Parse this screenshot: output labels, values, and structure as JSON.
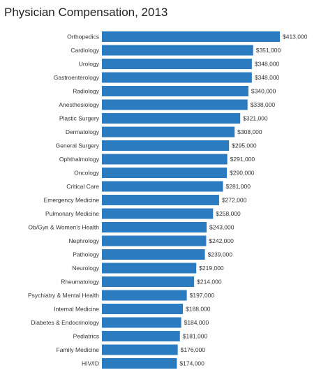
{
  "chart_data": {
    "type": "bar",
    "orientation": "horizontal",
    "title": "Physician Compensation, 2013",
    "xlabel": "",
    "ylabel": "",
    "grid": false,
    "legend": "none",
    "bar_color": "#2a7bc0",
    "xlim": [
      0,
      413000
    ],
    "categories": [
      "Orthopedics",
      "Cardiology",
      "Urology",
      "Gastroenterology",
      "Radiology",
      "Anesthesiology",
      "Plastic Surgery",
      "Dermatology",
      "General Surgery",
      "Ophthalmology",
      "Oncology",
      "Critical Care",
      "Emergency Medicine",
      "Pulmonary Medicine",
      "Ob/Gyn & Women's Health",
      "Nephrology",
      "Pathology",
      "Neurology",
      "Rheumatology",
      "Psychiatry & Mental Health",
      "Internal Medicine",
      "Diabetes & Endocrinology",
      "Pediatrics",
      "Family Medicine",
      "HIV/ID"
    ],
    "values": [
      413000,
      351000,
      348000,
      348000,
      340000,
      338000,
      321000,
      308000,
      295000,
      291000,
      290000,
      281000,
      272000,
      258000,
      243000,
      242000,
      239000,
      219000,
      214000,
      197000,
      188000,
      184000,
      181000,
      176000,
      174000
    ],
    "value_labels": [
      "$413,000",
      "$351,000",
      "$348,000",
      "$348,000",
      "$340,000",
      "$338,000",
      "$321,000",
      "$308,000",
      "$295,000",
      "$291,000",
      "$290,000",
      "$281,000",
      "$272,000",
      "$258,000",
      "$243,000",
      "$242,000",
      "$239,000",
      "$219,000",
      "$214,000",
      "$197,000",
      "$188,000",
      "$184,000",
      "$181,000",
      "$176,000",
      "$174,000"
    ]
  }
}
